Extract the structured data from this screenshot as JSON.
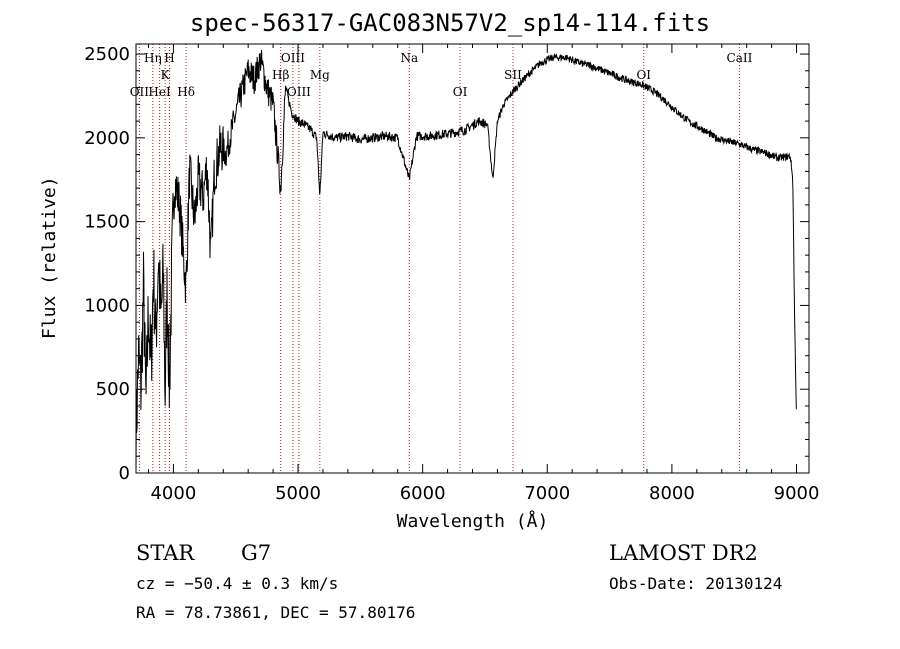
{
  "chart_data": {
    "type": "line",
    "title": "spec-56317-GAC083N57V2_sp14-114.fits",
    "xlabel": "Wavelength (Å)",
    "ylabel": "Flux (relative)",
    "xlim": [
      3700,
      9100
    ],
    "ylim": [
      0,
      2560
    ],
    "xticks": [
      4000,
      5000,
      6000,
      7000,
      8000,
      9000
    ],
    "yticks": [
      0,
      500,
      1000,
      1500,
      2000,
      2500
    ],
    "grid": false,
    "anchors": [
      [
        3700,
        200
      ],
      [
        3720,
        700
      ],
      [
        3740,
        500
      ],
      [
        3760,
        1100
      ],
      [
        3780,
        400
      ],
      [
        3800,
        1000
      ],
      [
        3820,
        600
      ],
      [
        3840,
        1200
      ],
      [
        3860,
        800
      ],
      [
        3880,
        1300
      ],
      [
        3900,
        900
      ],
      [
        3920,
        1200
      ],
      [
        3933,
        450
      ],
      [
        3950,
        1100
      ],
      [
        3968,
        500
      ],
      [
        3990,
        1300
      ],
      [
        4010,
        1750
      ],
      [
        4050,
        1600
      ],
      [
        4101,
        1100
      ],
      [
        4130,
        1800
      ],
      [
        4170,
        1500
      ],
      [
        4200,
        1750
      ],
      [
        4240,
        1650
      ],
      [
        4270,
        1850
      ],
      [
        4300,
        1300
      ],
      [
        4330,
        1800
      ],
      [
        4380,
        1950
      ],
      [
        4420,
        1900
      ],
      [
        4470,
        2050
      ],
      [
        4520,
        2200
      ],
      [
        4560,
        2300
      ],
      [
        4600,
        2400
      ],
      [
        4650,
        2350
      ],
      [
        4700,
        2470
      ],
      [
        4750,
        2300
      ],
      [
        4800,
        2200
      ],
      [
        4861,
        1700
      ],
      [
        4900,
        2300
      ],
      [
        4950,
        2150
      ],
      [
        5000,
        2100
      ],
      [
        5050,
        2080
      ],
      [
        5100,
        2050
      ],
      [
        5150,
        2000
      ],
      [
        5175,
        1650
      ],
      [
        5200,
        2030
      ],
      [
        5300,
        2000
      ],
      [
        5400,
        2010
      ],
      [
        5500,
        1990
      ],
      [
        5600,
        2000
      ],
      [
        5700,
        2010
      ],
      [
        5800,
        2000
      ],
      [
        5893,
        1750
      ],
      [
        5950,
        2010
      ],
      [
        6050,
        2010
      ],
      [
        6150,
        2020
      ],
      [
        6250,
        2030
      ],
      [
        6350,
        2050
      ],
      [
        6450,
        2100
      ],
      [
        6520,
        2080
      ],
      [
        6563,
        1750
      ],
      [
        6600,
        2100
      ],
      [
        6650,
        2200
      ],
      [
        6750,
        2300
      ],
      [
        6850,
        2380
      ],
      [
        6950,
        2450
      ],
      [
        7050,
        2480
      ],
      [
        7150,
        2480
      ],
      [
        7250,
        2450
      ],
      [
        7350,
        2430
      ],
      [
        7450,
        2400
      ],
      [
        7550,
        2370
      ],
      [
        7650,
        2340
      ],
      [
        7750,
        2320
      ],
      [
        7850,
        2280
      ],
      [
        7950,
        2220
      ],
      [
        8050,
        2150
      ],
      [
        8150,
        2090
      ],
      [
        8250,
        2050
      ],
      [
        8350,
        2000
      ],
      [
        8450,
        1980
      ],
      [
        8550,
        1960
      ],
      [
        8650,
        1930
      ],
      [
        8750,
        1910
      ],
      [
        8850,
        1880
      ],
      [
        8950,
        1890
      ],
      [
        8970,
        1750
      ],
      [
        8985,
        900
      ],
      [
        9000,
        300
      ]
    ]
  },
  "lines": [
    {
      "label": "OII",
      "wl": 3727,
      "row": 3
    },
    {
      "label": "Hη",
      "wl": 3835,
      "row": 1
    },
    {
      "label": "HeI",
      "wl": 3889,
      "row": 3
    },
    {
      "label": "K",
      "wl": 3934,
      "row": 2
    },
    {
      "label": "H",
      "wl": 3969,
      "row": 1
    },
    {
      "label": "Hδ",
      "wl": 4102,
      "row": 3
    },
    {
      "label": "Hβ",
      "wl": 4861,
      "row": 2
    },
    {
      "label": "OIII",
      "wl": 4959,
      "row": 1
    },
    {
      "label": "OIII",
      "wl": 5007,
      "row": 3
    },
    {
      "label": "Mg",
      "wl": 5175,
      "row": 2
    },
    {
      "label": "Na",
      "wl": 5893,
      "row": 1
    },
    {
      "label": "OI",
      "wl": 6300,
      "row": 3
    },
    {
      "label": "OI",
      "wl": 7774,
      "row": 2
    },
    {
      "label": "SII",
      "wl": 6725,
      "row": 2
    },
    {
      "label": "CaII",
      "wl": 8542,
      "row": 1
    }
  ],
  "info": {
    "type": "STAR",
    "subclass": "G7",
    "survey": "LAMOST DR2",
    "cz": "cz = −50.4 ± 0.3 km/s",
    "obs_date": "Obs-Date: 20130124",
    "coords": "RA =  78.73861, DEC =  57.80176"
  }
}
